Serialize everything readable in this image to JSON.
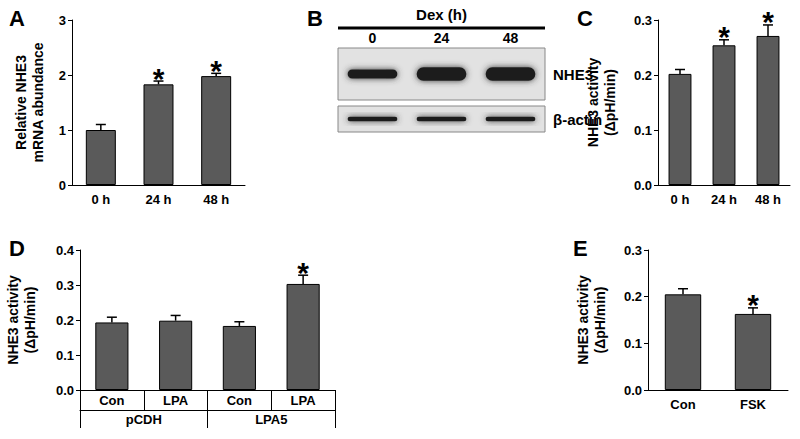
{
  "chart_data": [
    {
      "type": "bar",
      "title": "A",
      "ylabel": "Relative NHE3\nmRNA abundance",
      "categories": [
        "0 h",
        "24 h",
        "48 h"
      ],
      "values": [
        1.0,
        1.83,
        1.98
      ],
      "errors": [
        0.1,
        0.06,
        0.05
      ],
      "annotations": [
        null,
        "*",
        "*"
      ],
      "color": "#5a5a5a",
      "ylim": [
        0,
        3
      ],
      "yticks": [
        0,
        1,
        2,
        3
      ],
      "grid": false
    },
    {
      "type": "blot",
      "title": "B",
      "header": "Dex (h)",
      "categories": [
        "0",
        "24",
        "48"
      ],
      "series": [
        {
          "name": "NHE3",
          "values": [
            1.0,
            1.5,
            1.5
          ]
        },
        {
          "name": "β-actin",
          "values": [
            1.0,
            1.0,
            1.0
          ]
        }
      ]
    },
    {
      "type": "bar",
      "title": "C",
      "ylabel": "NHE3 activity\n(ΔpH/min)",
      "categories": [
        "0 h",
        "24 h",
        "48 h"
      ],
      "values": [
        0.202,
        0.254,
        0.271
      ],
      "errors": [
        0.008,
        0.01,
        0.02
      ],
      "annotations": [
        null,
        "*",
        "*"
      ],
      "color": "#5a5a5a",
      "ylim": [
        0,
        0.3
      ],
      "yticks": [
        {
          "value": 0,
          "label": "0.0"
        },
        0.1,
        0.2,
        0.3
      ],
      "grid": false
    },
    {
      "type": "bar",
      "title": "D",
      "ylabel": "NHE3 activity\n(ΔpH/min)",
      "categories": [
        "Con",
        "LPA",
        "Con",
        "LPA"
      ],
      "groups": [
        "pCDH",
        "LPA5"
      ],
      "values": [
        0.193,
        0.198,
        0.183,
        0.303
      ],
      "errors": [
        0.015,
        0.015,
        0.012,
        0.025
      ],
      "annotations": [
        null,
        null,
        null,
        "*"
      ],
      "color": "#5a5a5a",
      "ylim": [
        0,
        0.4
      ],
      "yticks": [
        {
          "value": 0,
          "label": "0.0"
        },
        0.1,
        0.2,
        0.3,
        0.4
      ],
      "grid": false
    },
    {
      "type": "bar",
      "title": "E",
      "ylabel": "NHE3 activity\n(ΔpH/min)",
      "categories": [
        "Con",
        "FSK"
      ],
      "values": [
        0.205,
        0.163
      ],
      "errors": [
        0.012,
        0.013
      ],
      "annotations": [
        null,
        "*"
      ],
      "color": "#5a5a5a",
      "ylim": [
        0,
        0.3
      ],
      "yticks": [
        {
          "value": 0,
          "label": "0.0"
        },
        0.1,
        0.2,
        0.3
      ],
      "grid": false
    }
  ]
}
